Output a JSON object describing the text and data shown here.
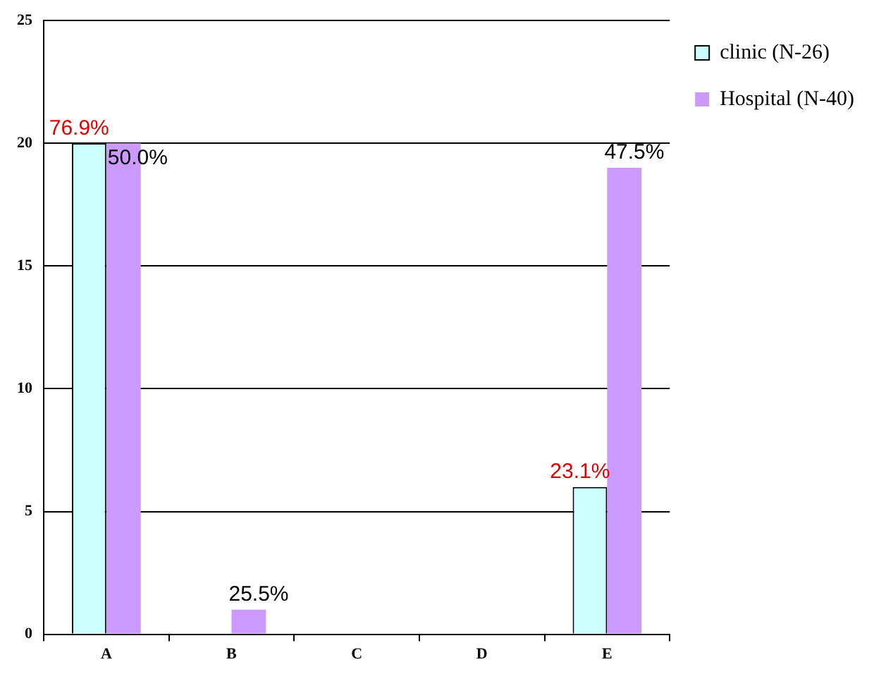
{
  "chart_data": {
    "type": "bar",
    "categories": [
      "A",
      "B",
      "C",
      "D",
      "E"
    ],
    "series": [
      {
        "name": "clinic (N-26)",
        "color": "#ccffff",
        "values": [
          20,
          0,
          0,
          0,
          6
        ]
      },
      {
        "name": "Hospital (N-40)",
        "color": "#cc99ff",
        "values": [
          20,
          1,
          0,
          0,
          19
        ]
      }
    ],
    "annotations": [
      {
        "text": "76.9%",
        "x": "A",
        "y": 20
      },
      {
        "text": "50.0%",
        "x": "A",
        "y": 20
      },
      {
        "text": "25.5%",
        "x": "B",
        "y": 1
      },
      {
        "text": "23.1%",
        "x": "E",
        "y": 6
      },
      {
        "text": "47.5%",
        "x": "E",
        "y": 19
      }
    ],
    "ylim": [
      0,
      25
    ],
    "yticks": [
      0,
      5,
      10,
      15,
      20,
      25
    ],
    "grid": "y",
    "legend": "top right"
  }
}
